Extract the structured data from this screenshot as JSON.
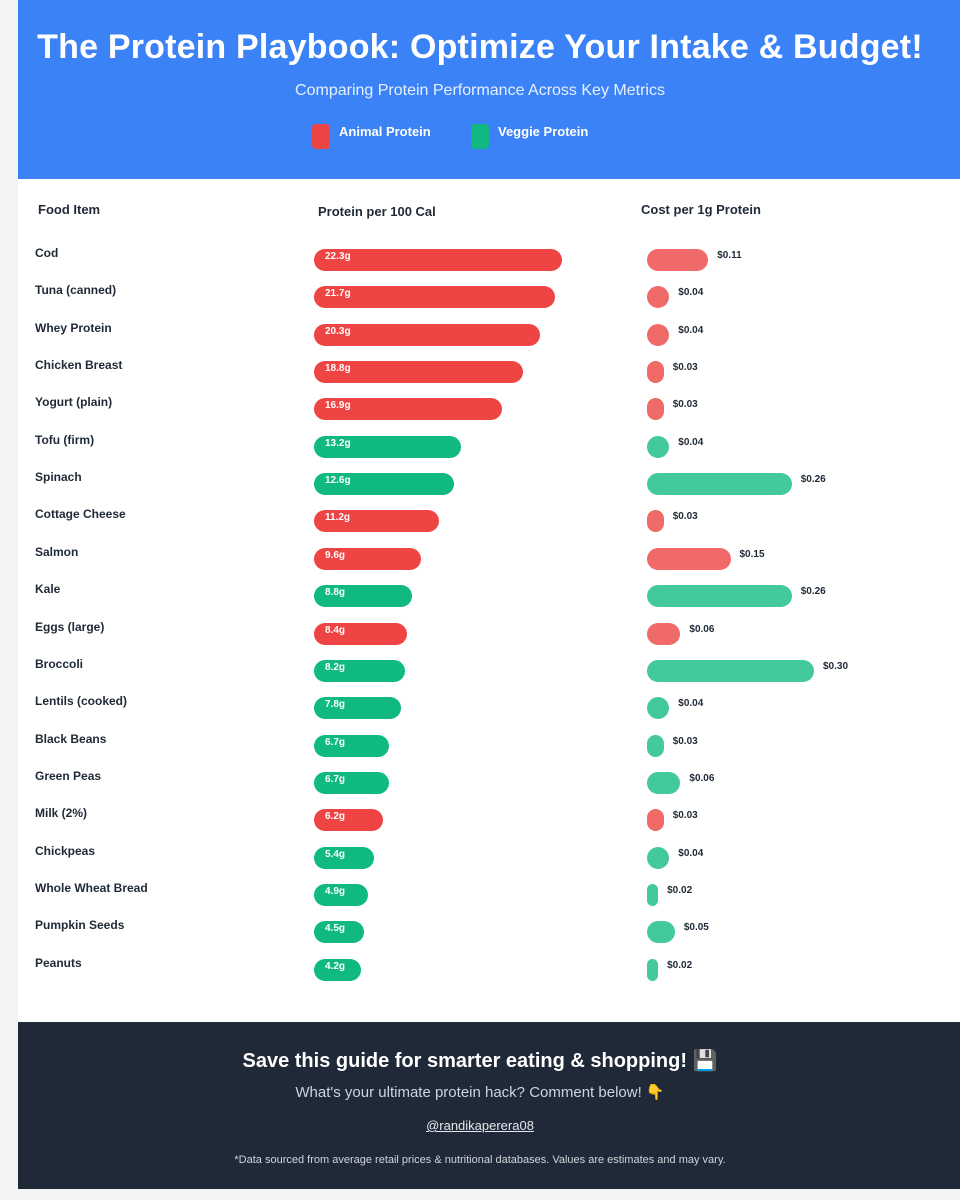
{
  "header": {
    "title": "The Protein Playbook: Optimize Your Intake & Budget!",
    "subtitle": "Comparing Protein Performance Across Key Metrics",
    "legend": [
      {
        "label": "Animal Protein",
        "color": "#ef4444"
      },
      {
        "label": "Veggie Protein",
        "color": "#10b981"
      }
    ]
  },
  "columns": {
    "food": "Food Item",
    "protein": "Protein per 100 Cal",
    "cost": "Cost per 1g Protein"
  },
  "colors": {
    "animal_bar": "#ef4444",
    "veggie_bar": "#10b981",
    "animal_cost": "#f06a6a",
    "veggie_cost": "#43c99b",
    "header_bg": "#3b82f6",
    "footer_bg": "#1f2937"
  },
  "chart_data": {
    "type": "bar",
    "categories": [
      "Cod",
      "Tuna (canned)",
      "Whey Protein",
      "Chicken Breast",
      "Yogurt (plain)",
      "Tofu (firm)",
      "Spinach",
      "Cottage Cheese",
      "Salmon",
      "Kale",
      "Eggs (large)",
      "Broccoli",
      "Lentils (cooked)",
      "Black Beans",
      "Green Peas",
      "Milk (2%)",
      "Chickpeas",
      "Whole Wheat Bread",
      "Pumpkin Seeds",
      "Peanuts"
    ],
    "protein_labels": [
      "22.3g",
      "21.7g",
      "20.3g",
      "18.8g",
      "16.9g",
      "13.2g",
      "12.6g",
      "11.2g",
      "9.6g",
      "8.8g",
      "8.4g",
      "8.2g",
      "7.8g",
      "6.7g",
      "6.7g",
      "6.2g",
      "5.4g",
      "4.9g",
      "4.5g",
      "4.2g"
    ],
    "cost_labels": [
      "$0.11",
      "$0.04",
      "$0.04",
      "$0.03",
      "$0.03",
      "$0.04",
      "$0.26",
      "$0.03",
      "$0.15",
      "$0.26",
      "$0.06",
      "$0.30",
      "$0.04",
      "$0.03",
      "$0.06",
      "$0.03",
      "$0.04",
      "$0.02",
      "$0.05",
      "$0.02"
    ],
    "series": [
      {
        "name": "Protein per 100 Cal",
        "unit": "g",
        "values": [
          22.3,
          21.7,
          20.3,
          18.8,
          16.9,
          13.2,
          12.6,
          11.2,
          9.6,
          8.8,
          8.4,
          8.2,
          7.8,
          6.7,
          6.7,
          6.2,
          5.4,
          4.9,
          4.5,
          4.2
        ]
      },
      {
        "name": "Cost per 1g Protein",
        "unit": "$",
        "values": [
          0.11,
          0.04,
          0.04,
          0.03,
          0.03,
          0.04,
          0.26,
          0.03,
          0.15,
          0.26,
          0.06,
          0.3,
          0.04,
          0.03,
          0.06,
          0.03,
          0.04,
          0.02,
          0.05,
          0.02
        ]
      }
    ],
    "group": [
      "Animal Protein",
      "Animal Protein",
      "Animal Protein",
      "Animal Protein",
      "Animal Protein",
      "Veggie Protein",
      "Veggie Protein",
      "Animal Protein",
      "Animal Protein",
      "Veggie Protein",
      "Animal Protein",
      "Veggie Protein",
      "Veggie Protein",
      "Veggie Protein",
      "Veggie Protein",
      "Animal Protein",
      "Veggie Protein",
      "Veggie Protein",
      "Veggie Protein",
      "Veggie Protein"
    ]
  },
  "footer": {
    "cta": "Save this guide for smarter eating & shopping! 💾",
    "question": "What's your ultimate protein hack? Comment below! 👇",
    "handle": "@randikaperera08",
    "disclaimer": "*Data sourced from average retail prices & nutritional databases. Values are estimates and may vary."
  }
}
